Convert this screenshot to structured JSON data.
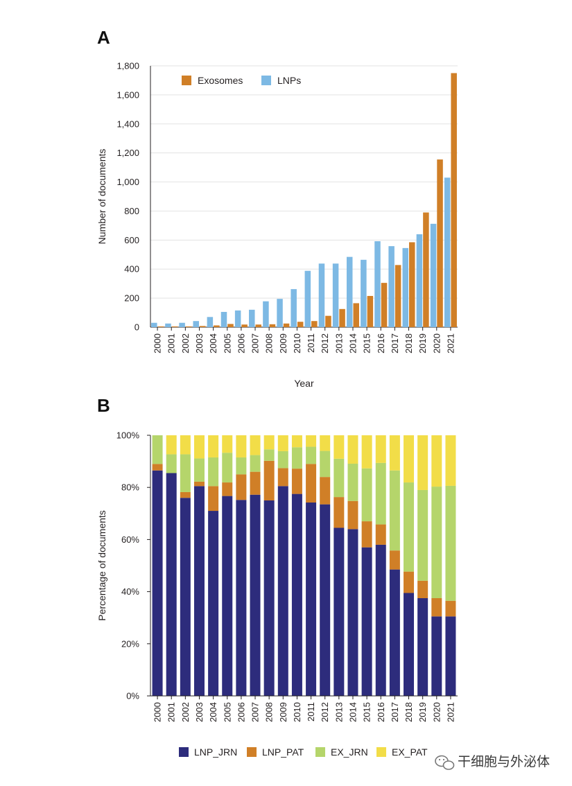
{
  "chart_data": [
    {
      "panel": "A",
      "type": "bar",
      "xlabel": "Year",
      "ylabel": "Number of documents",
      "ylim": [
        0,
        1800
      ],
      "yticks": [
        "0",
        "200",
        "400",
        "600",
        "800",
        "1,000",
        "1,200",
        "1,400",
        "1,600",
        "1,800"
      ],
      "grid": true,
      "legend_position": "top-left",
      "categories": [
        "2000",
        "2001",
        "2002",
        "2003",
        "2004",
        "2005",
        "2006",
        "2007",
        "2008",
        "2009",
        "2010",
        "2011",
        "2012",
        "2013",
        "2014",
        "2015",
        "2016",
        "2017",
        "2018",
        "2019",
        "2020",
        "2021"
      ],
      "series": [
        {
          "name": "LNPs",
          "color": "#7db9e4",
          "values": [
            30,
            25,
            30,
            42,
            70,
            105,
            115,
            120,
            178,
            195,
            262,
            388,
            438,
            438,
            484,
            464,
            592,
            558,
            545,
            640,
            712,
            1030
          ]
        },
        {
          "name": "Exosomes",
          "color": "#d07f27",
          "values": [
            5,
            5,
            5,
            8,
            12,
            22,
            18,
            18,
            20,
            25,
            37,
            42,
            78,
            125,
            165,
            215,
            305,
            428,
            585,
            790,
            1155,
            1750
          ]
        }
      ]
    },
    {
      "panel": "B",
      "type": "bar",
      "stacked": true,
      "xlabel": "",
      "ylabel": "Percentage of documents",
      "ylim": [
        0,
        100
      ],
      "yticks": [
        "0%",
        "20%",
        "40%",
        "60%",
        "80%",
        "100%"
      ],
      "grid": false,
      "legend_position": "bottom",
      "categories": [
        "2000",
        "2001",
        "2002",
        "2003",
        "2004",
        "2005",
        "2006",
        "2007",
        "2008",
        "2009",
        "2010",
        "2011",
        "2012",
        "2013",
        "2014",
        "2015",
        "2016",
        "2017",
        "2018",
        "2019",
        "2020",
        "2021"
      ],
      "series": [
        {
          "name": "LNP_JRN",
          "color": "#2d2c7c",
          "values": [
            86.5,
            85.5,
            76,
            80.5,
            71,
            76.7,
            75.2,
            77.2,
            75,
            80.5,
            77.5,
            74.2,
            73.5,
            64.5,
            64,
            57,
            58,
            48.5,
            39.5,
            37.5,
            30.5,
            30.5
          ]
        },
        {
          "name": "LNP_PAT",
          "color": "#d07f27",
          "values": [
            2.5,
            0,
            2.2,
            1.7,
            9.5,
            5.2,
            9.8,
            8.8,
            15.2,
            6.9,
            9.7,
            14.8,
            10.5,
            11.8,
            10.8,
            10,
            7.8,
            7.3,
            8.2,
            6.7,
            7,
            6
          ]
        },
        {
          "name": "EX_JRN",
          "color": "#b5d56b",
          "values": [
            11,
            7.2,
            14.5,
            8.9,
            11,
            11.4,
            6.5,
            6.4,
            4.4,
            6.5,
            8.2,
            6.6,
            10,
            14.7,
            14.3,
            20.3,
            23.6,
            30.7,
            34.2,
            34.8,
            42.8,
            44.1
          ]
        },
        {
          "name": "EX_PAT",
          "color": "#f2dd48",
          "values": [
            0,
            7.3,
            7.3,
            8.9,
            8.5,
            6.7,
            8.5,
            7.6,
            5.4,
            6.1,
            4.6,
            4.4,
            6,
            9,
            10.9,
            12.7,
            10.6,
            13.5,
            18.1,
            21,
            19.7,
            19.4
          ]
        }
      ]
    }
  ],
  "panel_letters": {
    "a": "A",
    "b": "B"
  },
  "watermark": "干细胞与外泌体"
}
